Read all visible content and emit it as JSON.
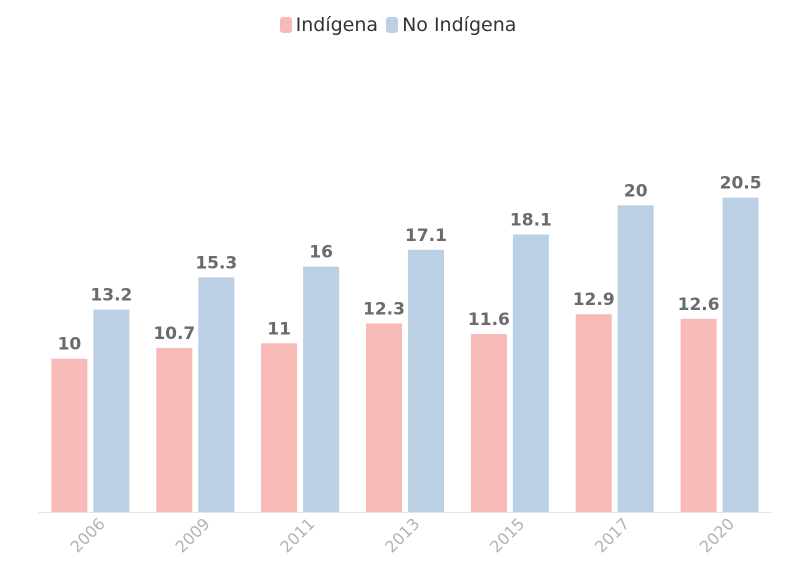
{
  "chart_data": {
    "type": "bar",
    "categories": [
      "2006",
      "2009",
      "2011",
      "2013",
      "2015",
      "2017",
      "2020"
    ],
    "series": [
      {
        "name": "Indígena",
        "color": "#f8bab6",
        "values": [
          10,
          10.7,
          11,
          12.3,
          11.6,
          12.9,
          12.6
        ]
      },
      {
        "name": "No Indígena",
        "color": "#bbd0e4",
        "values": [
          13.2,
          15.3,
          16,
          17.1,
          18.1,
          20,
          20.5
        ]
      }
    ],
    "title": "",
    "xlabel": "",
    "ylabel": "",
    "ylim": [
      0,
      21
    ],
    "data_labels": true,
    "legend_position": "top-center",
    "grid": false
  }
}
